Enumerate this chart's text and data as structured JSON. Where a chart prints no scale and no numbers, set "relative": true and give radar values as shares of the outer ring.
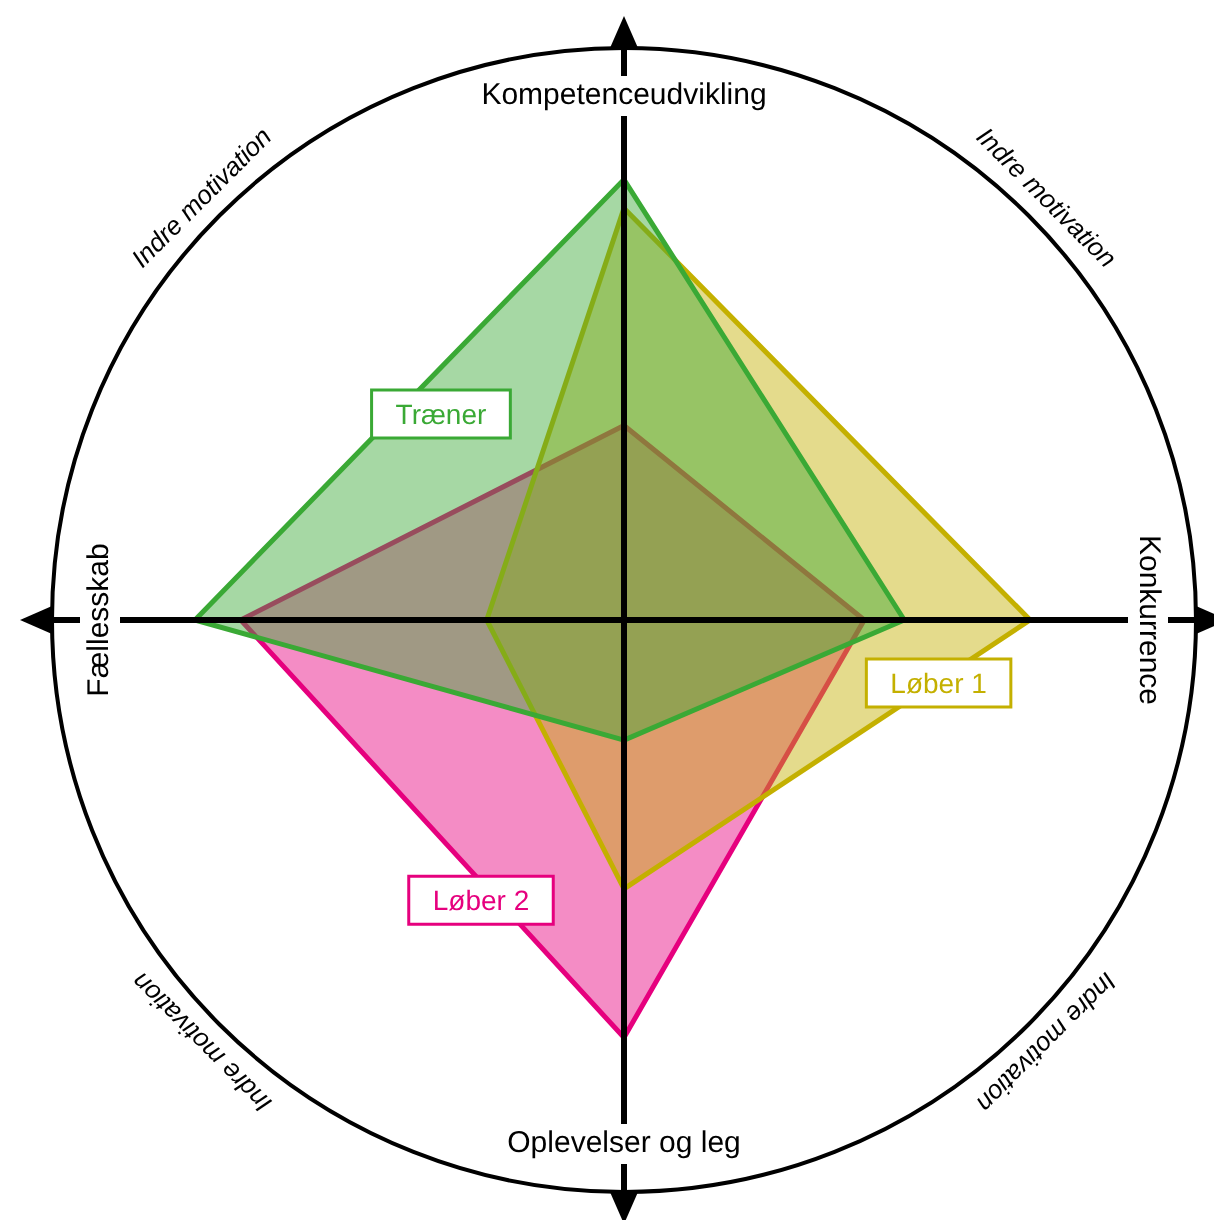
{
  "chart_data": {
    "type": "radar",
    "relative": true,
    "categories": [
      "Kompetenceudvikling",
      "Konkurrence",
      "Oplevelser og leg",
      "Fællesskab"
    ],
    "series": [
      {
        "name": "Træner",
        "color": "#3aa935",
        "values": [
          0.77,
          0.49,
          0.21,
          0.75
        ]
      },
      {
        "name": "Løber 1",
        "color": "#c4b000",
        "values": [
          0.72,
          0.71,
          0.47,
          0.24
        ]
      },
      {
        "name": "Løber 2",
        "color": "#e6007e",
        "values": [
          0.34,
          0.42,
          0.73,
          0.67
        ]
      }
    ],
    "annotations": [
      "Indre motivation",
      "Indre motivation",
      "Indre motivation",
      "Indre motivation"
    ],
    "legend": false
  }
}
